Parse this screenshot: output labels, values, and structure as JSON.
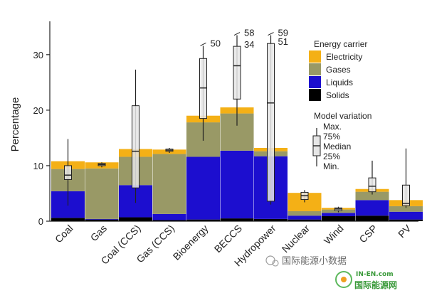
{
  "chart_data": {
    "type": "bar",
    "stacked": true,
    "ylabel": "Percentage",
    "ylim": [
      0,
      36
    ],
    "yticks": [
      0,
      10,
      20,
      30
    ],
    "grid": false,
    "categories": [
      "Coal",
      "Gas",
      "Coal (CCS)",
      "Gas (CCS)",
      "Bioenergy",
      "BECCS",
      "Hydropower",
      "Nuclear",
      "Wind",
      "CSP",
      "PV"
    ],
    "series": [
      {
        "name": "Solids",
        "color": "#000000",
        "values": [
          0.6,
          0.3,
          0.7,
          0.2,
          0.3,
          0.5,
          0.4,
          0.3,
          0.9,
          1.0,
          0.3
        ]
      },
      {
        "name": "Liquids",
        "color": "#1c0ecf",
        "values": [
          4.8,
          0.1,
          5.8,
          1.1,
          11.3,
          12.2,
          11.3,
          0.7,
          0.6,
          2.8,
          1.4
        ]
      },
      {
        "name": "Gases",
        "color": "#999966",
        "values": [
          4.0,
          9.1,
          5.1,
          10.8,
          6.2,
          6.7,
          0.9,
          0.8,
          0.6,
          1.5,
          1.0
        ]
      },
      {
        "name": "Electricity",
        "color": "#f4b016",
        "values": [
          1.4,
          1.1,
          1.4,
          0.8,
          1.2,
          1.1,
          0.6,
          3.3,
          0.3,
          0.5,
          1.1
        ]
      }
    ],
    "model_variation": [
      {
        "min": 2.8,
        "q25": 7.5,
        "median": 8.3,
        "q75": 10.0,
        "max": 14.8
      },
      {
        "min": 9.7,
        "q25": 10.0,
        "median": 10.2,
        "q75": 10.4,
        "max": 10.6
      },
      {
        "min": 3.3,
        "q25": 6.0,
        "median": 12.6,
        "q75": 20.8,
        "max": 27.3
      },
      {
        "min": 12.3,
        "q25": 12.6,
        "median": 12.8,
        "q75": 13.0,
        "max": 13.2
      },
      {
        "min": 14.5,
        "q25": 18.5,
        "median": 24.0,
        "q75": 29.3,
        "max": 31.6,
        "max_label": "50"
      },
      {
        "min": 17.2,
        "q25": 22.0,
        "median": 28.0,
        "q75": 31.5,
        "max": 33.5,
        "max_label": "58",
        "q75_label": "34"
      },
      {
        "min": 3.0,
        "q25": 3.6,
        "median": 21.3,
        "q75": 32.0,
        "max": 33.5,
        "max_label": "59",
        "q75_label": "51"
      },
      {
        "min": 3.4,
        "q25": 3.9,
        "median": 4.6,
        "q75": 5.2,
        "max": 5.6
      },
      {
        "min": 1.6,
        "q25": 1.9,
        "median": 2.2,
        "q75": 2.4,
        "max": 2.6
      },
      {
        "min": 4.8,
        "q25": 5.3,
        "median": 6.3,
        "q75": 7.8,
        "max": 10.9
      },
      {
        "min": 2.4,
        "q25": 2.8,
        "median": 3.2,
        "q75": 6.5,
        "max": 13.1
      }
    ],
    "legend": {
      "title": "Energy carrier",
      "placement": "top-right",
      "entries": [
        "Electricity",
        "Gases",
        "Liquids",
        "Solids"
      ]
    },
    "box_legend": {
      "title": "Model variation",
      "labels": [
        "Max.",
        "75%",
        "Median",
        "25%",
        "Min."
      ]
    }
  },
  "watermark": {
    "text_main": "国际能源小数据",
    "text_logo": "国际能源网",
    "text_url": "IN-EN.com"
  }
}
